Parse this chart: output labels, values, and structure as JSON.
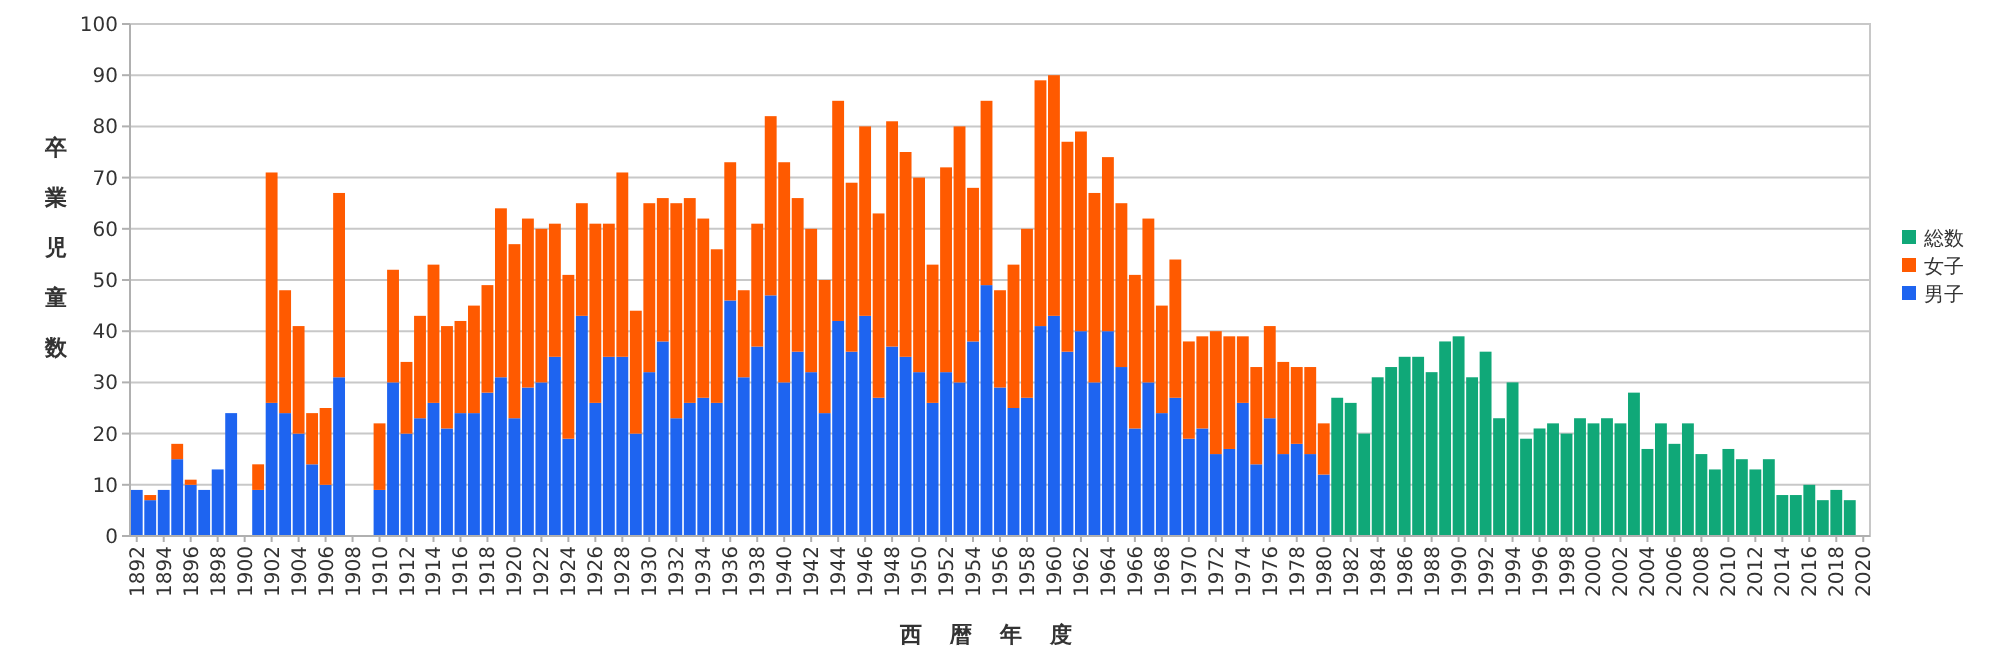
{
  "chart_data": {
    "type": "bar",
    "stacked": true,
    "ylabel": "卒業児童数",
    "xlabel": "西暦年度",
    "categories": [
      "1892",
      null,
      "1894",
      null,
      "1896",
      null,
      "1898",
      null,
      "1900",
      null,
      "1902",
      null,
      "1904",
      null,
      "1906",
      null,
      "1908",
      null,
      "1910",
      null,
      "1912",
      null,
      "1914",
      null,
      "1916",
      null,
      "1918",
      null,
      "1920",
      null,
      "1922",
      null,
      "1924",
      null,
      "1926",
      null,
      "1928",
      null,
      "1930",
      null,
      "1932",
      null,
      "1934",
      null,
      "1936",
      null,
      "1938",
      null,
      "1940",
      null,
      "1942",
      null,
      "1944",
      null,
      "1946",
      null,
      "1948",
      null,
      "1950",
      null,
      "1952",
      null,
      "1954",
      null,
      "1956",
      null,
      "1958",
      null,
      "1960",
      null,
      "1962",
      null,
      "1964",
      null,
      "1966",
      null,
      "1968",
      null,
      "1970",
      null,
      "1972",
      null,
      "1974",
      null,
      "1976",
      null,
      "1978",
      null,
      "1980",
      null,
      "1982",
      null,
      "1984",
      null,
      "1986",
      null,
      "1988",
      null,
      "1990",
      null,
      "1992",
      null,
      "1994",
      null,
      "1996",
      null,
      "1998",
      null,
      "2000",
      null,
      "2002",
      null,
      "2004",
      null,
      "2006",
      null,
      "2008",
      null,
      "2010",
      null,
      "2012",
      null,
      "2014",
      null,
      "2016",
      null,
      "2018",
      null,
      "2020"
    ],
    "series": [
      {
        "name": "男子",
        "color": "#1e64f0",
        "values": [
          9,
          7,
          9,
          15,
          10,
          9,
          13,
          24,
          null,
          9,
          26,
          24,
          20,
          14,
          10,
          31,
          null,
          null,
          9,
          30,
          20,
          23,
          26,
          21,
          24,
          24,
          28,
          31,
          23,
          29,
          30,
          35,
          19,
          43,
          26,
          35,
          35,
          20,
          32,
          38,
          23,
          26,
          27,
          26,
          46,
          31,
          37,
          47,
          30,
          36,
          32,
          24,
          42,
          36,
          43,
          27,
          37,
          35,
          32,
          26,
          32,
          30,
          38,
          49,
          29,
          25,
          27,
          41,
          43,
          36,
          40,
          30,
          40,
          33,
          21,
          30,
          24,
          27,
          19,
          21,
          16,
          17,
          26,
          14,
          23,
          16,
          18,
          16,
          12,
          null,
          null,
          null,
          null,
          null,
          null,
          null,
          null,
          null,
          null,
          null,
          null,
          null,
          null,
          null,
          null,
          null,
          null,
          null,
          null,
          null,
          null,
          null,
          null,
          null,
          null,
          null,
          null,
          null,
          null,
          null,
          null,
          null,
          null,
          null,
          null,
          null,
          null,
          null,
          null
        ]
      },
      {
        "name": "女子",
        "color": "#ff5a00",
        "values": [
          0,
          1,
          0,
          3,
          1,
          0,
          0,
          0,
          null,
          5,
          45,
          24,
          21,
          10,
          15,
          36,
          null,
          null,
          13,
          22,
          14,
          20,
          27,
          20,
          18,
          21,
          21,
          33,
          34,
          33,
          30,
          26,
          32,
          22,
          35,
          26,
          36,
          24,
          33,
          28,
          42,
          40,
          35,
          30,
          27,
          17,
          24,
          35,
          43,
          30,
          28,
          26,
          43,
          33,
          37,
          36,
          44,
          40,
          38,
          27,
          40,
          50,
          30,
          36,
          19,
          28,
          33,
          48,
          47,
          41,
          39,
          37,
          34,
          32,
          30,
          32,
          21,
          27,
          19,
          18,
          24,
          22,
          13,
          19,
          18,
          18,
          15,
          17,
          10,
          null,
          null,
          null,
          null,
          null,
          null,
          null,
          null,
          null,
          null,
          null,
          null,
          null,
          null,
          null,
          null,
          null,
          null,
          null,
          null,
          null,
          null,
          null,
          null,
          null,
          null,
          null,
          null,
          null,
          null,
          null,
          null,
          null,
          null,
          null,
          null,
          null,
          null,
          null,
          null
        ]
      },
      {
        "name": "総数",
        "color": "#10a878",
        "values": [
          null,
          null,
          null,
          null,
          null,
          null,
          null,
          null,
          null,
          null,
          null,
          null,
          null,
          null,
          null,
          null,
          null,
          null,
          null,
          null,
          null,
          null,
          null,
          null,
          null,
          null,
          null,
          null,
          null,
          null,
          null,
          null,
          null,
          null,
          null,
          null,
          null,
          null,
          null,
          null,
          null,
          null,
          null,
          null,
          null,
          null,
          null,
          null,
          null,
          null,
          null,
          null,
          null,
          null,
          null,
          null,
          null,
          null,
          null,
          null,
          null,
          null,
          null,
          null,
          null,
          null,
          null,
          null,
          null,
          null,
          null,
          null,
          null,
          null,
          null,
          null,
          null,
          null,
          null,
          null,
          null,
          null,
          null,
          null,
          null,
          null,
          null,
          null,
          null,
          27,
          26,
          20,
          31,
          33,
          35,
          35,
          32,
          38,
          39,
          31,
          36,
          23,
          30,
          19,
          21,
          22,
          20,
          23,
          22,
          23,
          22,
          28,
          17,
          22,
          18,
          22,
          16,
          13,
          17,
          15,
          13,
          15,
          8,
          8,
          10,
          7,
          9,
          7,
          null
        ]
      }
    ],
    "ylim": [
      0,
      100
    ],
    "yticks": [
      0,
      10,
      20,
      30,
      40,
      50,
      60,
      70,
      80,
      90,
      100
    ],
    "grid": "y",
    "legend": "right"
  }
}
